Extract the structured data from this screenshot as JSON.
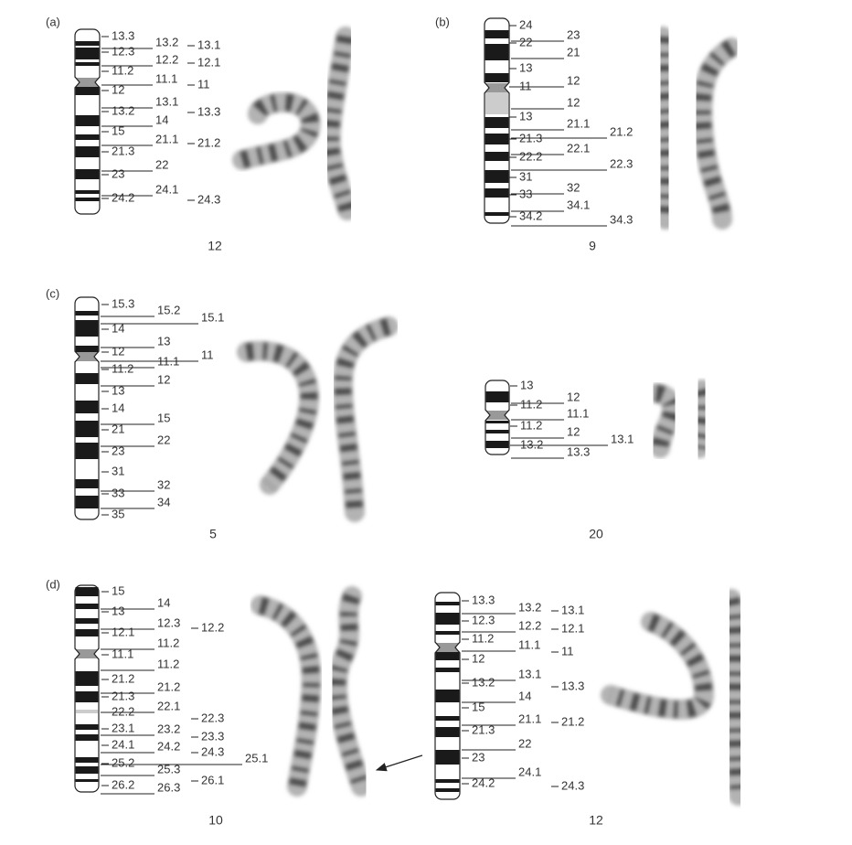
{
  "panels": [
    "(a)",
    "(b)",
    "(c)",
    "(d)"
  ],
  "ideograms": [
    {
      "number": "12",
      "columns": [
        [
          "13.3",
          "12.3",
          "11.2",
          "12",
          "13.2",
          "15",
          "21.3",
          "23",
          "24.2"
        ],
        [
          "13.2",
          "12.2",
          "11.1",
          "13.1",
          "14",
          "21.1",
          "22",
          "24.1"
        ],
        [
          "13.1",
          "12.1",
          "11",
          "13.3",
          "21.2",
          "24.3"
        ]
      ]
    },
    {
      "number": "9",
      "columns": [
        [
          "24",
          "22",
          "13",
          "11",
          "13",
          "21.3",
          "22.2",
          "31",
          "33",
          "34.2"
        ],
        [
          "23",
          "21",
          "12",
          "12",
          "21.1",
          "22.1",
          "32",
          "34.1"
        ],
        [
          "21.2",
          "22.3",
          "34.3"
        ]
      ]
    },
    {
      "number": "5",
      "columns": [
        [
          "15.3",
          "14",
          "12",
          "11.2",
          "13",
          "14",
          "21",
          "23",
          "31",
          "33",
          "35"
        ],
        [
          "15.2",
          "13",
          "11.1",
          "12",
          "15",
          "22",
          "32",
          "34"
        ],
        [
          "15.1",
          "11"
        ]
      ]
    },
    {
      "number": "20",
      "columns": [
        [
          "13",
          "11.2",
          "11.2",
          "13.2"
        ],
        [
          "12",
          "11.1",
          "12",
          "13.3"
        ],
        [
          "13.1"
        ]
      ]
    },
    {
      "number": "10",
      "columns": [
        [
          "15",
          "13",
          "12.1",
          "11.1",
          "21.2",
          "21.3",
          "22.2",
          "23.1",
          "24.1",
          "25.2",
          "26.2"
        ],
        [
          "14",
          "12.3",
          "11.2",
          "11.2",
          "21.2",
          "22.1",
          "23.2",
          "24.2",
          "25.3",
          "26.3"
        ],
        [
          "12.2",
          "22.3",
          "23.3",
          "24.3",
          "26.1"
        ],
        [
          "25.1"
        ]
      ]
    },
    {
      "number": "12",
      "columns": [
        [
          "13.3",
          "12.3",
          "11.2",
          "12",
          "13.2",
          "15",
          "21.3",
          "23",
          "24.2"
        ],
        [
          "13.2",
          "12.2",
          "11.1",
          "13.1",
          "14",
          "21.1",
          "22",
          "24.1"
        ],
        [
          "13.1",
          "12.1",
          "11",
          "13.3",
          "21.2",
          "24.3"
        ]
      ]
    }
  ]
}
